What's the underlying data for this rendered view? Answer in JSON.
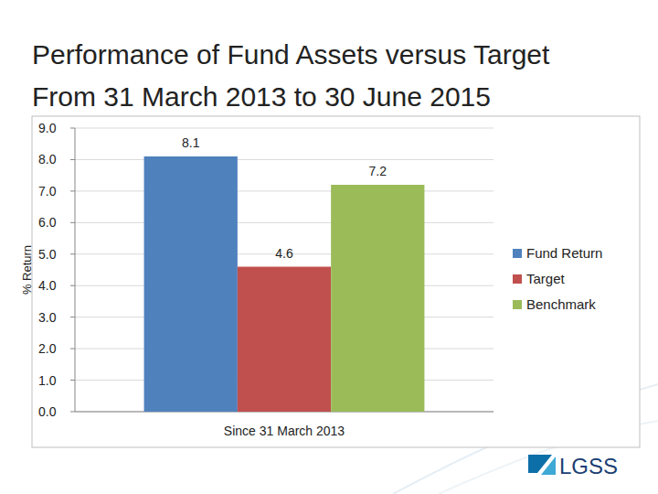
{
  "chart_data": {
    "type": "bar",
    "title": "Performance of Fund Assets versus Target",
    "subtitle": "From 31 March 2013 to 30 June 2015",
    "y_label": "% Return",
    "categories": [
      "Since 31 March 2013"
    ],
    "series": [
      {
        "name": "Fund Return",
        "color": "#4f81bd",
        "values": [
          8.1
        ]
      },
      {
        "name": "Target",
        "color": "#c0504d",
        "values": [
          4.6
        ]
      },
      {
        "name": "Benchmark",
        "color": "#9bbb59",
        "values": [
          7.2
        ]
      }
    ],
    "ylim": [
      0,
      9
    ],
    "yticks": [
      {
        "value": 0,
        "label": "0.0"
      },
      {
        "value": 1,
        "label": "1.0"
      },
      {
        "value": 2,
        "label": "2.0"
      },
      {
        "value": 3,
        "label": "3.0"
      },
      {
        "value": 4,
        "label": "4.0"
      },
      {
        "value": 5,
        "label": "5.0"
      },
      {
        "value": 6,
        "label": "6.0"
      },
      {
        "value": 7,
        "label": "7.0"
      },
      {
        "value": 8,
        "label": "8.0"
      },
      {
        "value": 9,
        "label": "9.0"
      }
    ],
    "grid": true,
    "legend": "right",
    "data_labels": true
  },
  "logo": "LGSS"
}
